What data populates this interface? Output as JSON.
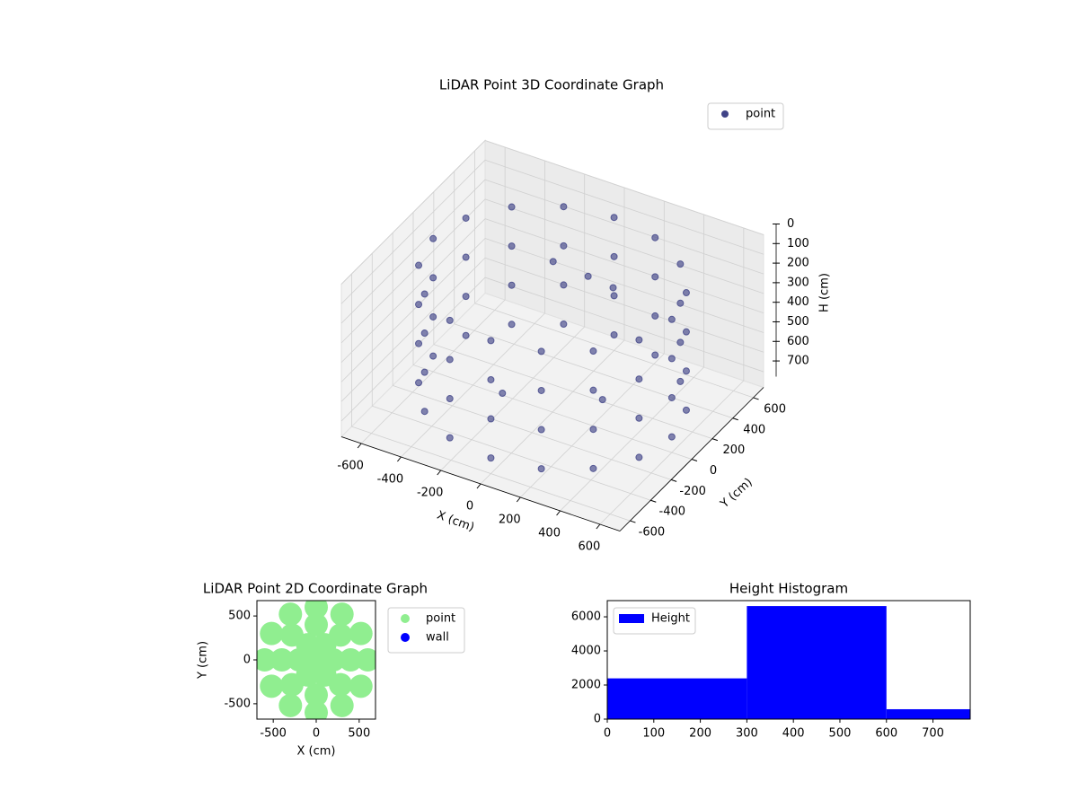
{
  "chart_data": [
    {
      "type": "scatter3d",
      "title": "LiDAR Point 3D Coordinate Graph",
      "xlabel": "X (cm)",
      "ylabel": "Y (cm)",
      "zlabel": "H (cm)",
      "xlim": [
        -700,
        700
      ],
      "ylim": [
        -700,
        700
      ],
      "zlim": [
        780,
        0
      ],
      "xticks": [
        -600,
        -400,
        -200,
        0,
        200,
        400,
        600
      ],
      "yticks": [
        -600,
        -400,
        -200,
        0,
        200,
        400,
        600
      ],
      "zticks": [
        0,
        100,
        200,
        300,
        400,
        500,
        600,
        700
      ],
      "legend": "upper right",
      "grid": true,
      "series": [
        {
          "name": "point",
          "color": "#404387",
          "x": [
            600,
            554,
            424,
            230,
            0,
            -230,
            -424,
            -554,
            -600,
            -554,
            -424,
            -230,
            0,
            230,
            424,
            554,
            600,
            554,
            424,
            230,
            0,
            -230,
            -424,
            -554,
            -600,
            -554,
            -424,
            -230,
            0,
            230,
            424,
            554,
            600,
            554,
            424,
            230,
            0,
            -230,
            -424,
            -554,
            -600,
            -554,
            -424,
            -230,
            0,
            230,
            424,
            554,
            600,
            554,
            424,
            230,
            0,
            -230,
            -424,
            -554,
            -600,
            -554,
            -424,
            -230,
            0,
            230,
            424,
            554,
            -100,
            50,
            150,
            200,
            -200
          ],
          "y": [
            0,
            230,
            424,
            554,
            600,
            554,
            424,
            230,
            0,
            -230,
            -424,
            -554,
            -600,
            -554,
            -424,
            -230,
            0,
            230,
            424,
            554,
            600,
            554,
            424,
            230,
            0,
            -230,
            -424,
            -554,
            -600,
            -554,
            -424,
            -230,
            0,
            230,
            424,
            554,
            600,
            554,
            424,
            230,
            0,
            -230,
            -424,
            -554,
            -600,
            -554,
            -424,
            -230,
            0,
            230,
            424,
            554,
            600,
            554,
            424,
            230,
            0,
            -230,
            -424,
            -554,
            -600,
            -554,
            -424,
            -230,
            200,
            250,
            300,
            100,
            -100
          ],
          "z": [
            100,
            100,
            100,
            100,
            100,
            100,
            100,
            100,
            100,
            100,
            100,
            100,
            100,
            100,
            100,
            100,
            300,
            300,
            300,
            300,
            300,
            300,
            300,
            300,
            300,
            300,
            300,
            300,
            300,
            300,
            300,
            300,
            500,
            500,
            500,
            500,
            500,
            500,
            500,
            500,
            500,
            500,
            500,
            500,
            500,
            500,
            500,
            500,
            700,
            700,
            700,
            700,
            700,
            700,
            700,
            700,
            700,
            700,
            700,
            700,
            700,
            700,
            700,
            700,
            150,
            200,
            250,
            700,
            700
          ]
        }
      ]
    },
    {
      "type": "scatter",
      "title": "LiDAR Point 2D Coordinate Graph",
      "xlabel": "X (cm)",
      "ylabel": "Y (cm)",
      "xlim": [
        -690,
        690
      ],
      "ylim": [
        -675,
        675
      ],
      "xticks": [
        -500,
        0,
        500
      ],
      "yticks": [
        -500,
        0,
        500
      ],
      "legend": "outside right",
      "series": [
        {
          "name": "point",
          "color": "#90ee90",
          "x": [
            600,
            520,
            300,
            0,
            -300,
            -520,
            -600,
            -520,
            -300,
            0,
            300,
            520,
            400,
            283,
            0,
            -283,
            -400,
            -283,
            0,
            283,
            200,
            100,
            -100,
            -200,
            -100,
            100,
            0
          ],
          "y": [
            0,
            300,
            520,
            600,
            520,
            300,
            0,
            -300,
            -520,
            -600,
            -520,
            -300,
            0,
            283,
            400,
            283,
            0,
            -283,
            -400,
            -283,
            0,
            173,
            173,
            0,
            -173,
            -173,
            0
          ]
        },
        {
          "name": "wall",
          "color": "#0000ff",
          "x": [],
          "y": []
        }
      ]
    },
    {
      "type": "histogram",
      "title": "Height Histogram",
      "xlim": [
        0,
        780
      ],
      "ylim": [
        0,
        6950
      ],
      "xticks": [
        0,
        100,
        200,
        300,
        400,
        500,
        600,
        700
      ],
      "yticks": [
        0,
        2000,
        4000,
        6000
      ],
      "bins": [
        0,
        300,
        600,
        780
      ],
      "legend": "upper left",
      "series": [
        {
          "name": "Height",
          "color": "#0000ff",
          "values": [
            2390,
            6630,
            580
          ]
        }
      ]
    }
  ]
}
